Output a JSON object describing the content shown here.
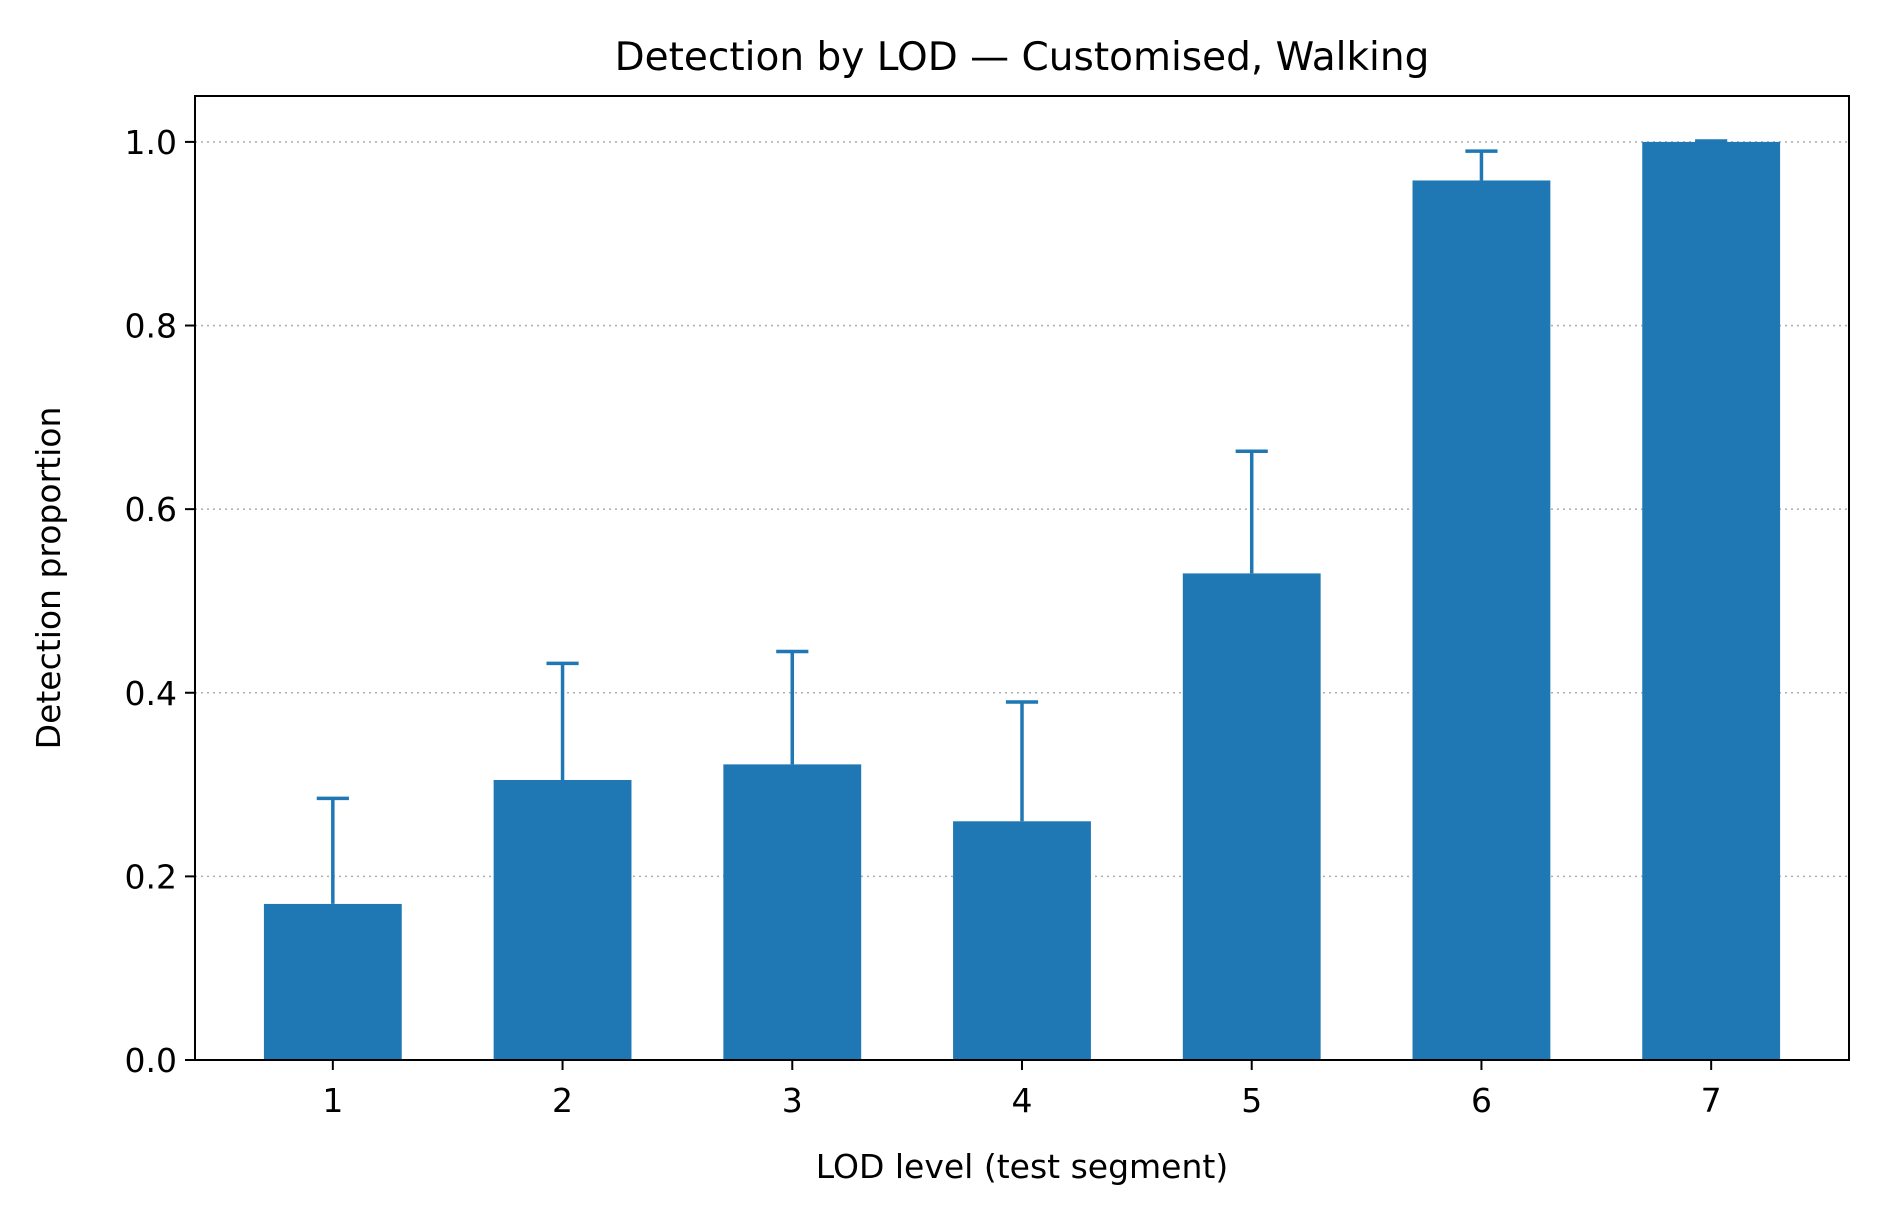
{
  "chart_data": {
    "type": "bar",
    "title": "Detection by LOD — Customised, Walking",
    "xlabel": "LOD level (test segment)",
    "ylabel": "Detection proportion",
    "categories": [
      "1",
      "2",
      "3",
      "4",
      "5",
      "6",
      "7"
    ],
    "values": [
      0.17,
      0.305,
      0.322,
      0.26,
      0.53,
      0.958,
      1.0
    ],
    "error_upper": [
      0.285,
      0.432,
      0.445,
      0.39,
      0.663,
      0.99,
      1.001
    ],
    "ylim": [
      0,
      1.05
    ],
    "yticks": [
      0.0,
      0.2,
      0.4,
      0.6,
      0.8,
      1.0
    ],
    "ytick_labels": [
      "0.0",
      "0.2",
      "0.4",
      "0.6",
      "0.8",
      "1.0"
    ],
    "grid": "y, dotted",
    "legend": "none",
    "colors": {
      "bar": "#1f77b4",
      "error_bar": "#1f77b4",
      "grid": "#b0b0b0"
    }
  }
}
